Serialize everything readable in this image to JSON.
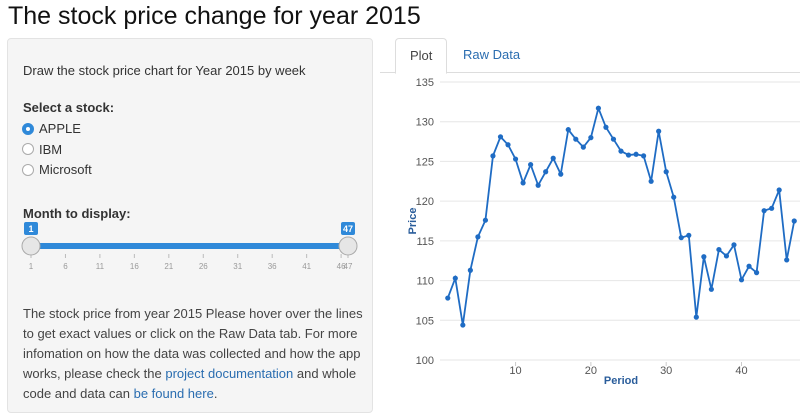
{
  "header": {
    "title": "The stock price change for year 2015"
  },
  "sidebar": {
    "description": "Draw the stock price chart for Year 2015 by week",
    "stock_input": {
      "label": "Select a stock:",
      "options": [
        "APPLE",
        "IBM",
        "Microsoft"
      ],
      "selected": 0
    },
    "month_slider": {
      "label": "Month to display:",
      "min": 1,
      "max": 47,
      "from": 1,
      "to": 47,
      "ticks": [
        1,
        6,
        11,
        16,
        21,
        26,
        31,
        36,
        41,
        46,
        47
      ]
    },
    "note": [
      {
        "text": "The stock price from year 2015 Please hover over the lines to get exact values or click on the Raw Data tab. For more infomation on how the data was collected and how the app works, please check the "
      },
      {
        "link": "project documentation"
      },
      {
        "text": " and whole code and data can "
      },
      {
        "link": "be found here"
      },
      {
        "text": "."
      }
    ]
  },
  "tabs": {
    "items": [
      "Plot",
      "Raw Data"
    ],
    "active": 0
  },
  "chart_data": {
    "type": "line",
    "x_label": "Period",
    "y_label": "Price",
    "x": [
      1,
      2,
      3,
      4,
      5,
      6,
      7,
      8,
      9,
      10,
      11,
      12,
      13,
      14,
      15,
      16,
      17,
      18,
      19,
      20,
      21,
      22,
      23,
      24,
      25,
      26,
      27,
      28,
      29,
      30,
      31,
      32,
      33,
      34,
      35,
      36,
      37,
      38,
      39,
      40,
      41,
      42,
      43,
      44,
      45,
      46,
      47
    ],
    "values": [
      107.8,
      110.3,
      104.4,
      111.3,
      115.5,
      117.6,
      125.7,
      128.1,
      127.1,
      125.3,
      122.3,
      124.6,
      122.0,
      123.7,
      125.4,
      123.4,
      129.0,
      127.8,
      126.8,
      128.0,
      131.7,
      129.3,
      127.8,
      126.3,
      125.8,
      125.9,
      125.7,
      122.5,
      128.8,
      123.7,
      120.5,
      115.4,
      115.7,
      105.4,
      113.0,
      108.9,
      113.9,
      113.1,
      114.5,
      110.1,
      111.8,
      111.0,
      118.8,
      119.1,
      121.4,
      112.6,
      117.5
    ],
    "color": "#1f6cc4",
    "xlim": [
      0.5,
      47.5
    ],
    "ylim": [
      100,
      135
    ],
    "xticks": [
      10,
      20,
      30,
      40
    ],
    "yticks": [
      100,
      105,
      110,
      115,
      120,
      125,
      130,
      135
    ],
    "grid": true
  }
}
